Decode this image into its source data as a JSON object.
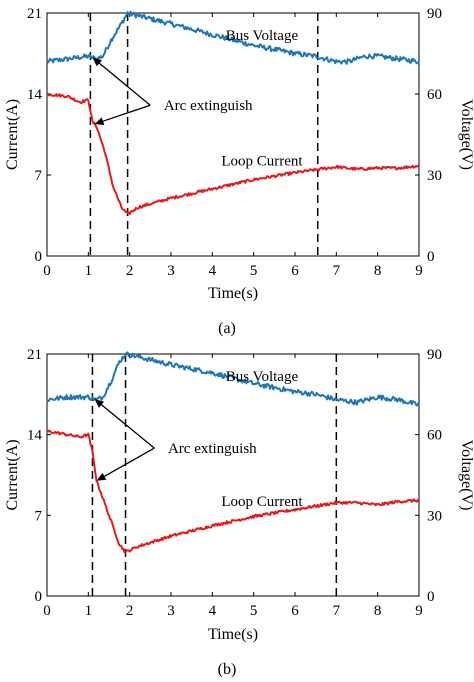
{
  "chart_data": [
    {
      "type": "line",
      "panel_label": "(a)",
      "xlabel": "Time(s)",
      "ylabel_left": "Current(A)",
      "ylabel_right": "Voltage(V)",
      "xlim": [
        0,
        9
      ],
      "ylim_left": [
        0,
        21
      ],
      "ylim_right": [
        0,
        90
      ],
      "xticks": [
        0,
        1,
        2,
        3,
        4,
        5,
        6,
        7,
        8,
        9
      ],
      "yticks_left": [
        0,
        7,
        14,
        21
      ],
      "yticks_right": [
        0,
        30,
        60,
        90
      ],
      "grid": false,
      "legend": "none",
      "vlines": [
        1.05,
        1.95,
        6.55
      ],
      "series": [
        {
          "name": "Bus Voltage",
          "axis": "right",
          "color": "#1f77b4",
          "x": [
            0,
            0.5,
            1.0,
            1.2,
            1.35,
            1.55,
            1.8,
            1.95,
            2.2,
            3,
            4,
            5,
            6,
            6.5,
            7,
            7.3,
            7.7,
            8,
            8.5,
            9
          ],
          "y": [
            72,
            73,
            74,
            73,
            74,
            80,
            86,
            90,
            89,
            86,
            82,
            78,
            75,
            74,
            72,
            72,
            74,
            74,
            73,
            72
          ]
        },
        {
          "name": "Loop Current",
          "axis": "left",
          "color": "#e41a1c",
          "x": [
            0,
            0.5,
            0.8,
            1.0,
            1.1,
            1.2,
            1.4,
            1.6,
            1.8,
            1.95,
            2.2,
            3,
            4,
            5,
            6,
            7,
            7.5,
            8,
            8.5,
            9
          ],
          "y": [
            14,
            13.8,
            13.3,
            13.5,
            11.6,
            11.2,
            9,
            6,
            4.2,
            3.6,
            4.2,
            5,
            5.8,
            6.6,
            7.2,
            7.7,
            7.5,
            7.6,
            7.6,
            7.8
          ]
        }
      ],
      "annotations": [
        {
          "text": "Bus Voltage",
          "x": 5.2,
          "y_right": 80
        },
        {
          "text": "Loop Current",
          "x": 5.2,
          "y_left": 7.8
        },
        {
          "text": "Arc extinguish",
          "x": 3.9,
          "y_left": 12.6
        }
      ]
    },
    {
      "type": "line",
      "panel_label": "(b)",
      "xlabel": "Time(s)",
      "ylabel_left": "Current(A)",
      "ylabel_right": "Voltage(V)",
      "xlim": [
        0,
        9
      ],
      "ylim_left": [
        0,
        21
      ],
      "ylim_right": [
        0,
        90
      ],
      "xticks": [
        0,
        1,
        2,
        3,
        4,
        5,
        6,
        7,
        8,
        9
      ],
      "yticks_left": [
        0,
        7,
        14,
        21
      ],
      "yticks_right": [
        0,
        30,
        60,
        90
      ],
      "grid": false,
      "legend": "none",
      "vlines": [
        1.1,
        1.9,
        7.0
      ],
      "series": [
        {
          "name": "Bus Voltage",
          "axis": "right",
          "color": "#1f77b4",
          "x": [
            0,
            0.5,
            1.0,
            1.2,
            1.35,
            1.55,
            1.75,
            1.9,
            2.2,
            3,
            4,
            5,
            6,
            6.5,
            7,
            7.5,
            8,
            8.5,
            9
          ],
          "y": [
            73,
            74,
            74,
            73,
            74,
            80,
            87,
            90,
            89,
            86,
            83,
            79,
            76,
            75,
            73,
            72,
            74,
            73,
            71
          ]
        },
        {
          "name": "Loop Current",
          "axis": "left",
          "color": "#e41a1c",
          "x": [
            0,
            0.5,
            0.8,
            1.0,
            1.1,
            1.2,
            1.4,
            1.6,
            1.75,
            1.9,
            2.2,
            3,
            4,
            5,
            6,
            7,
            7.5,
            8,
            8.5,
            9
          ],
          "y": [
            14.3,
            14,
            13.8,
            14,
            12.5,
            10,
            8,
            6,
            4.5,
            3.8,
            4.3,
            5.2,
            6.1,
            6.9,
            7.5,
            8.1,
            8.1,
            7.9,
            8.2,
            8.3
          ]
        }
      ],
      "annotations": [
        {
          "text": "Bus Voltage",
          "x": 5.2,
          "y_right": 80
        },
        {
          "text": "Loop Current",
          "x": 5.2,
          "y_left": 7.8
        },
        {
          "text": "Arc extinguish",
          "x": 4.0,
          "y_left": 12.4
        }
      ]
    }
  ]
}
